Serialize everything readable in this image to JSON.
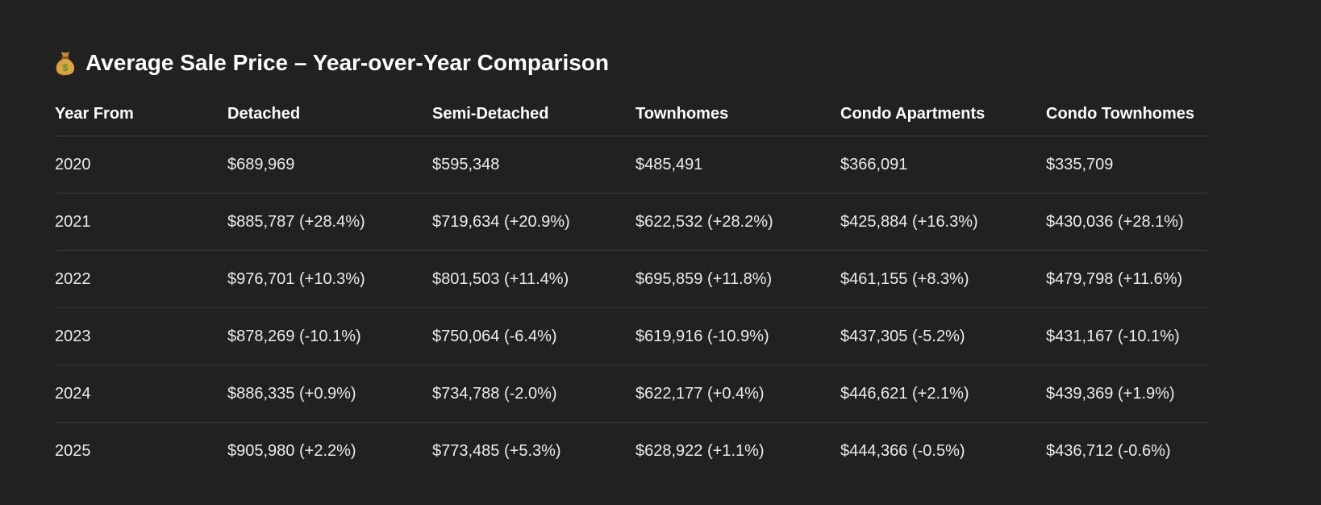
{
  "heading": {
    "icon": "money-bag-icon",
    "title": "Average Sale Price – Year-over-Year Comparison"
  },
  "table": {
    "headers": [
      "Year From",
      "Detached",
      "Semi-Detached",
      "Townhomes",
      "Condo Apartments",
      "Condo Townhomes"
    ],
    "rows": [
      [
        "2020",
        "$689,969",
        "$595,348",
        "$485,491",
        "$366,091",
        "$335,709"
      ],
      [
        "2021",
        "$885,787 (+28.4%)",
        "$719,634 (+20.9%)",
        "$622,532 (+28.2%)",
        "$425,884 (+16.3%)",
        "$430,036 (+28.1%)"
      ],
      [
        "2022",
        "$976,701 (+10.3%)",
        "$801,503 (+11.4%)",
        "$695,859 (+11.8%)",
        "$461,155 (+8.3%)",
        "$479,798 (+11.6%)"
      ],
      [
        "2023",
        "$878,269 (-10.1%)",
        "$750,064 (-6.4%)",
        "$619,916 (-10.9%)",
        "$437,305 (-5.2%)",
        "$431,167 (-10.1%)"
      ],
      [
        "2024",
        "$886,335 (+0.9%)",
        "$734,788 (-2.0%)",
        "$622,177 (+0.4%)",
        "$446,621 (+2.1%)",
        "$439,369 (+1.9%)"
      ],
      [
        "2025",
        "$905,980 (+2.2%)",
        "$773,485 (+5.3%)",
        "$628,922 (+1.1%)",
        "$444,366 (-0.5%)",
        "$436,712 (-0.6%)"
      ]
    ]
  },
  "colors": {
    "background": "#212121",
    "text": "#ececec",
    "divider": "#343434"
  }
}
